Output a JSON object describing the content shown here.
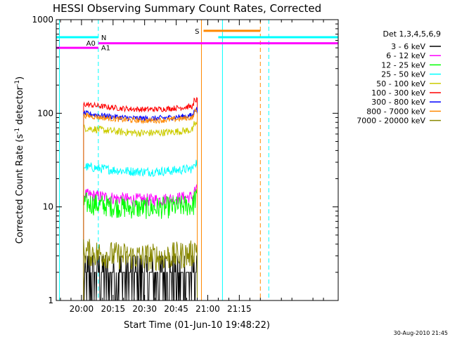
{
  "chart_data": {
    "type": "line",
    "title": "HESSI Observing Summary Count Rates, Corrected",
    "xlabel": "Start Time (01-Jun-10 19:48:22)",
    "ylabel_main": "Corrected Count Rate (s",
    "ylabel_sup1": "-1",
    "ylabel_mid": " detector",
    "ylabel_sup2": "-1",
    "ylabel_end": ")",
    "y_scale": "log",
    "ylim": [
      1,
      1000
    ],
    "xlim_minutes": [
      -12,
      122
    ],
    "x_ticks": [
      {
        "label": "20:00",
        "t": 0
      },
      {
        "label": "20:15",
        "t": 15
      },
      {
        "label": "20:30",
        "t": 30
      },
      {
        "label": "20:45",
        "t": 45
      },
      {
        "label": "21:00",
        "t": 60
      },
      {
        "label": "21:15",
        "t": 75
      }
    ],
    "y_ticks": [
      {
        "label": "1",
        "v": 1
      },
      {
        "label": "10",
        "v": 10
      },
      {
        "label": "100",
        "v": 100
      },
      {
        "label": "1000",
        "v": 1000
      }
    ],
    "legend_title": "Det 1,3,4,5,6,9",
    "legend_placement": "right",
    "series": [
      {
        "name": "3 - 6 keV",
        "color": "#000000",
        "level": 1.6,
        "noise": 0.45
      },
      {
        "name": "6 - 12 keV",
        "color": "#ff00ff",
        "level": 13.5,
        "noise": 0.07
      },
      {
        "name": "12 - 25 keV",
        "color": "#00ff00",
        "level": 11.0,
        "noise": 0.12
      },
      {
        "name": "25 - 50 keV",
        "color": "#00ffff",
        "level": 27.0,
        "noise": 0.05
      },
      {
        "name": "50 - 100 keV",
        "color": "#cccc00",
        "level": 70.0,
        "noise": 0.04
      },
      {
        "name": "100 - 300 keV",
        "color": "#ff0000",
        "level": 125.0,
        "noise": 0.03
      },
      {
        "name": "300 - 800 keV",
        "color": "#0000ff",
        "level": 100.0,
        "noise": 0.03
      },
      {
        "name": "800 - 7000 keV",
        "color": "#ff8800",
        "level": 95.0,
        "noise": 0.03
      },
      {
        "name": "7000 - 20000 keV",
        "color": "#888800",
        "level": 3.3,
        "noise": 0.15
      }
    ],
    "data_interval_minutes": [
      1,
      55
    ],
    "flag_bars": [
      {
        "label": "N",
        "color": "#00ffff",
        "level": 650,
        "t_start": -12,
        "t_end": 8,
        "label_pos": "end"
      },
      {
        "label": "N",
        "color": "#00ffff",
        "level": 650,
        "t_start": 65,
        "t_end": 122,
        "label_pos": "none"
      },
      {
        "label": "A0",
        "color": "#ff00ff",
        "level": 500,
        "t_start": -12,
        "t_end": 8,
        "label_pos": "end"
      },
      {
        "label": "A1",
        "color": "#ff00ff",
        "level": 560,
        "t_start": 8,
        "t_end": 122,
        "label_pos": "start"
      },
      {
        "label": "S",
        "color": "#ff8800",
        "level": 760,
        "t_start": 58,
        "t_end": 85,
        "label_pos": "before"
      }
    ],
    "vertical_markers": [
      {
        "t": -10.5,
        "color": "#00ffff",
        "style": "solid"
      },
      {
        "t": 8,
        "color": "#00ffff",
        "style": "dashed"
      },
      {
        "t": 57,
        "color": "#ff8800",
        "style": "solid"
      },
      {
        "t": 67,
        "color": "#00ffff",
        "style": "solid"
      },
      {
        "t": 85,
        "color": "#ff8800",
        "style": "dashed"
      },
      {
        "t": 89,
        "color": "#00ffff",
        "style": "dashed"
      }
    ],
    "footer_timestamp": "30-Aug-2010 21:45"
  }
}
